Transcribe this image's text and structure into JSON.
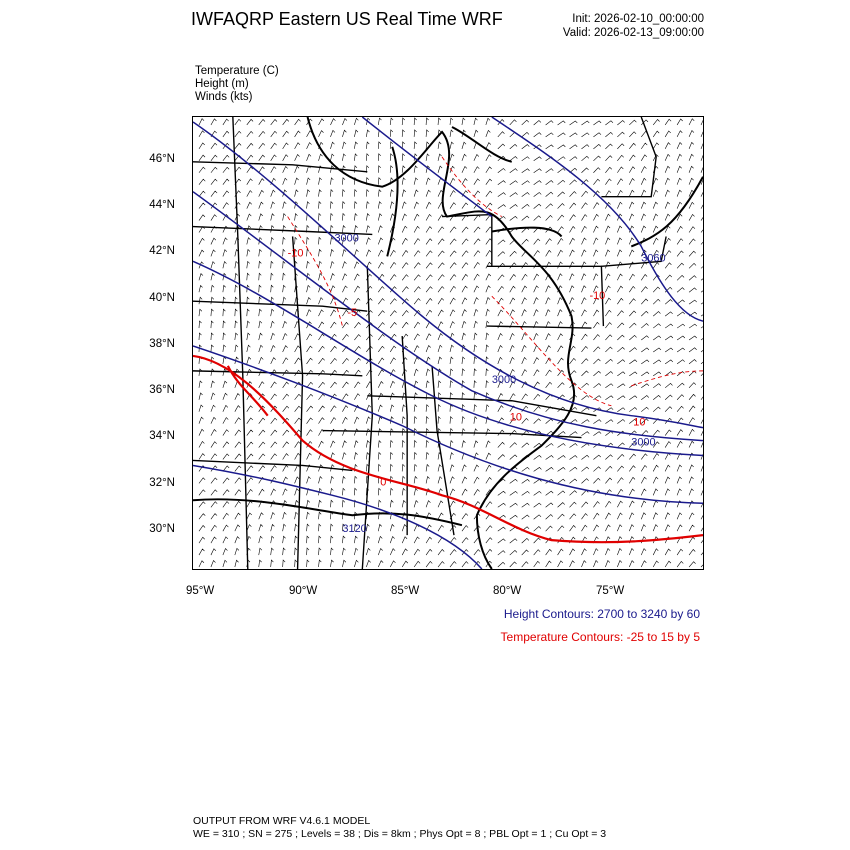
{
  "header": {
    "title": "IWFAQRP Eastern US Real Time WRF",
    "init": "Init: 2026-02-10_00:00:00",
    "valid": "Valid: 2026-02-13_09:00:00"
  },
  "fields": [
    "Temperature   (C)",
    "Height   (m)",
    "Winds   (kts)"
  ],
  "axes": {
    "lat_labels": [
      "46°N",
      "44°N",
      "42°N",
      "40°N",
      "38°N",
      "36°N",
      "34°N",
      "32°N",
      "30°N"
    ],
    "lon_labels": [
      "95°W",
      "90°W",
      "85°W",
      "80°W",
      "75°W"
    ]
  },
  "contour_labels": {
    "height": [
      "3000",
      "3060",
      "3000",
      "3000",
      "3120"
    ],
    "temperature": [
      "-10",
      "-5",
      "10",
      "10",
      "-10",
      "0"
    ]
  },
  "legend": {
    "height": "Height Contours: 2700 to 3240 by 60",
    "temperature": "Temperature Contours: -25 to 15 by 5"
  },
  "footer": {
    "line1": "OUTPUT FROM WRF V4.6.1 MODEL",
    "line2": "WE = 310 ; SN = 275 ; Levels = 38 ; Dis = 8km ; Phys Opt = 8 ; PBL Opt = 1 ; Cu Opt = 3"
  },
  "colors": {
    "height": "#1a1a8c",
    "temperature": "#e00000",
    "map": "#000000"
  }
}
